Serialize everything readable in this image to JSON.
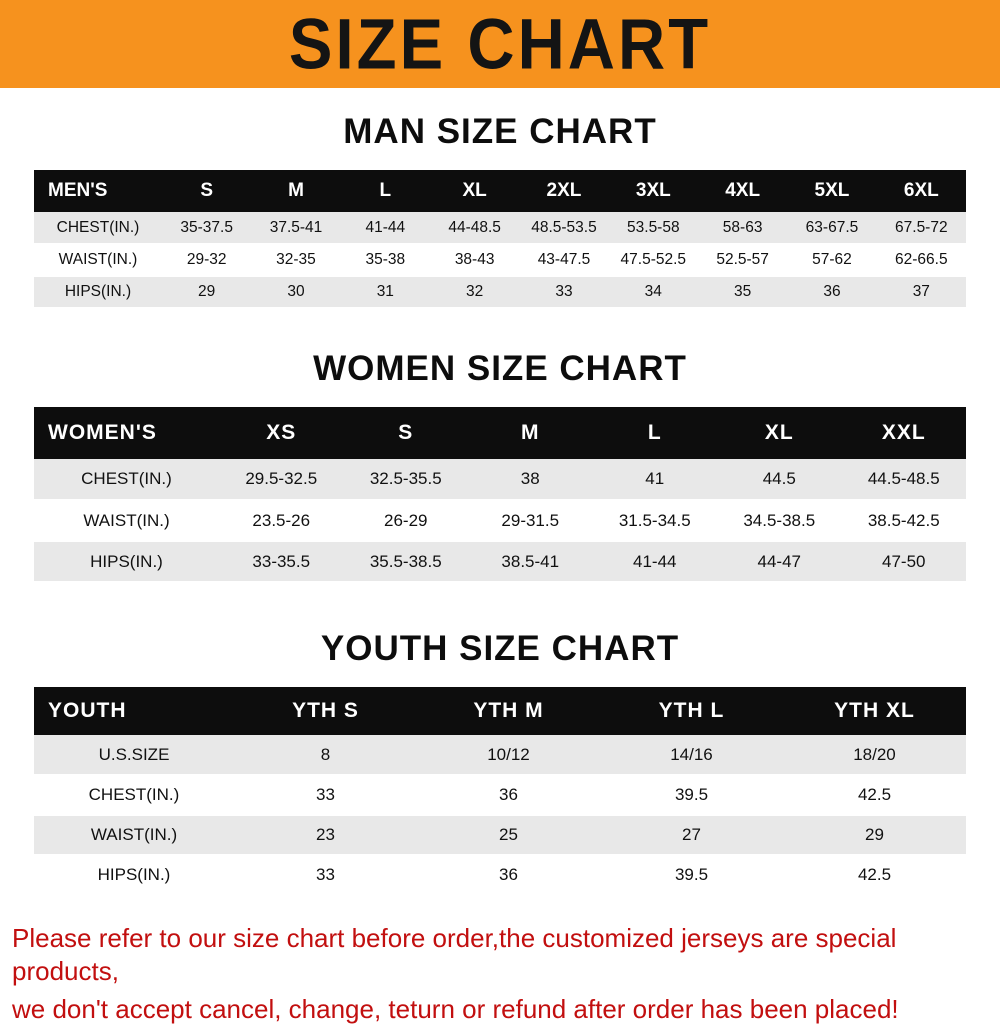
{
  "banner": {
    "title": "SIZE CHART",
    "bg_color": "#F6921E",
    "text_color": "#141414"
  },
  "men": {
    "heading": "MAN SIZE CHART",
    "header": [
      "MEN'S",
      "S",
      "M",
      "L",
      "XL",
      "2XL",
      "3XL",
      "4XL",
      "5XL",
      "6XL"
    ],
    "rows": [
      [
        "CHEST(IN.)",
        "35-37.5",
        "37.5-41",
        "41-44",
        "44-48.5",
        "48.5-53.5",
        "53.5-58",
        "58-63",
        "63-67.5",
        "67.5-72"
      ],
      [
        "WAIST(IN.)",
        "29-32",
        "32-35",
        "35-38",
        "38-43",
        "43-47.5",
        "47.5-52.5",
        "52.5-57",
        "57-62",
        "62-66.5"
      ],
      [
        "HIPS(IN.)",
        "29",
        "30",
        "31",
        "32",
        "33",
        "34",
        "35",
        "36",
        "37"
      ]
    ]
  },
  "women": {
    "heading": "WOMEN SIZE CHART",
    "header": [
      "WOMEN'S",
      "XS",
      "S",
      "M",
      "L",
      "XL",
      "XXL"
    ],
    "rows": [
      [
        "CHEST(IN.)",
        "29.5-32.5",
        "32.5-35.5",
        "38",
        "41",
        "44.5",
        "44.5-48.5"
      ],
      [
        "WAIST(IN.)",
        "23.5-26",
        "26-29",
        "29-31.5",
        "31.5-34.5",
        "34.5-38.5",
        "38.5-42.5"
      ],
      [
        "HIPS(IN.)",
        "33-35.5",
        "35.5-38.5",
        "38.5-41",
        "41-44",
        "44-47",
        "47-50"
      ]
    ]
  },
  "youth": {
    "heading": "YOUTH SIZE CHART",
    "header": [
      "YOUTH",
      "YTH S",
      "YTH M",
      "YTH L",
      "YTH XL"
    ],
    "rows": [
      [
        "U.S.SIZE",
        "8",
        "10/12",
        "14/16",
        "18/20"
      ],
      [
        "CHEST(IN.)",
        "33",
        "36",
        "39.5",
        "42.5"
      ],
      [
        "WAIST(IN.)",
        "23",
        "25",
        "27",
        "29"
      ],
      [
        "HIPS(IN.)",
        "33",
        "36",
        "39.5",
        "42.5"
      ]
    ]
  },
  "note": {
    "color": "#c20f0f",
    "lines": [
      "Please refer to our size chart before order,the customized jerseys are special products,",
      "we don't accept cancel, change, teturn or refund after order has been placed!"
    ]
  }
}
